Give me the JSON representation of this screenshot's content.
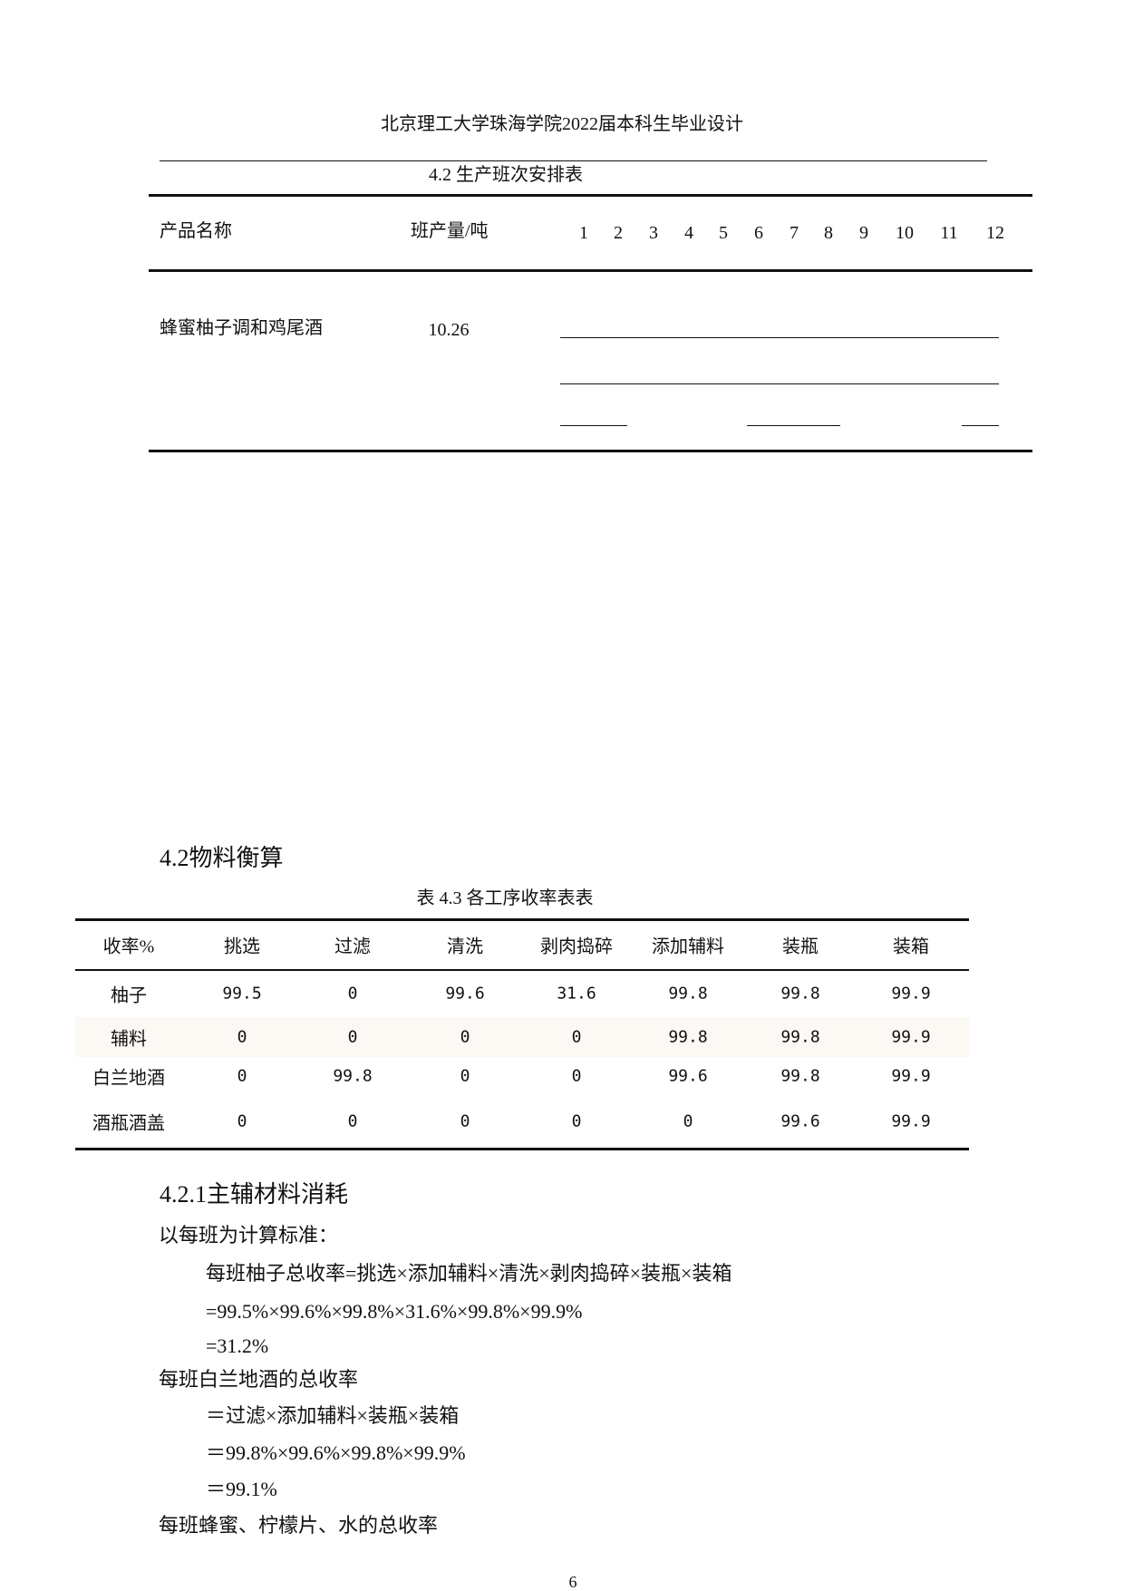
{
  "header": {
    "title": "北京理工大学珠海学院2022届本科生毕业设计"
  },
  "table42": {
    "caption": "4.2 生产班次安排表",
    "columns": {
      "product": "产品名称",
      "output": "班产量/吨",
      "shifts": [
        "1",
        "2",
        "3",
        "4",
        "5",
        "6",
        "7",
        "8",
        "9",
        "10",
        "11",
        "12"
      ]
    },
    "rows": [
      {
        "product": "蜂蜜柚子调和鸡尾酒",
        "output": "10.26"
      }
    ]
  },
  "section42": {
    "heading": "4.2物料衡算"
  },
  "table43": {
    "caption": "表 4.3 各工序收率表表",
    "headers": [
      "收率%",
      "挑选",
      "过滤",
      "清洗",
      "剥肉捣碎",
      "添加辅料",
      "装瓶",
      "装箱"
    ],
    "rows": [
      [
        "柚子",
        "99.5",
        "0",
        "99.6",
        "31.6",
        "99.8",
        "99.8",
        "99.9"
      ],
      [
        "辅料",
        "0",
        "0",
        "0",
        "0",
        "99.8",
        "99.8",
        "99.9"
      ],
      [
        "白兰地酒",
        "0",
        "99.8",
        "0",
        "0",
        "99.6",
        "99.8",
        "99.9"
      ],
      [
        "酒瓶酒盖",
        "0",
        "0",
        "0",
        "0",
        "0",
        "99.6",
        "99.9"
      ]
    ],
    "highlight_row_color": "#fcf8f4"
  },
  "section421": {
    "heading": "4.2.1主辅材料消耗",
    "lines": [
      "以每班为计算标准：",
      "每班柚子总收率=挑选×添加辅料×清洗×剥肉捣碎×装瓶×装箱",
      "=99.5%×99.6%×99.8%×31.6%×99.8%×99.9%",
      "=31.2%",
      "每班白兰地酒的总收率",
      "＝过滤×添加辅料×装瓶×装箱",
      "＝99.8%×99.6%×99.8%×99.9%",
      "＝99.1%",
      "每班蜂蜜、柠檬片、水的总收率"
    ]
  },
  "footer": {
    "page_number": "6"
  }
}
